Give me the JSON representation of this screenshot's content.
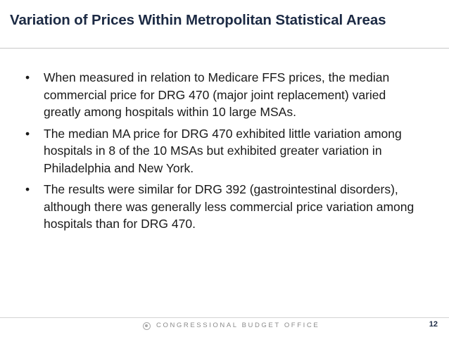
{
  "slide": {
    "title": "Variation of Prices Within Metropolitan Statistical Areas",
    "bullets": [
      "When measured in relation to Medicare FFS prices, the median commercial price for DRG 470 (major joint replacement) varied greatly among hospitals within 10 large MSAs.",
      "The median MA price for DRG 470 exhibited little variation among hospitals in 8 of the 10 MSAs but exhibited greater variation in Philadelphia and New York.",
      "The results were similar for DRG 392 (gastrointestinal disorders), although there was generally less commercial price variation among hospitals than for DRG 470."
    ],
    "bullet_symbol": "•"
  },
  "footer": {
    "organization": "CONGRESSIONAL BUDGET OFFICE",
    "logo_icon": "cbo-logo-icon",
    "page_number": "12"
  },
  "colors": {
    "title": "#1c2a44",
    "body_text": "#1a1a1a",
    "footer_text": "#8a8a8a",
    "rule": "#c8c8c8"
  }
}
